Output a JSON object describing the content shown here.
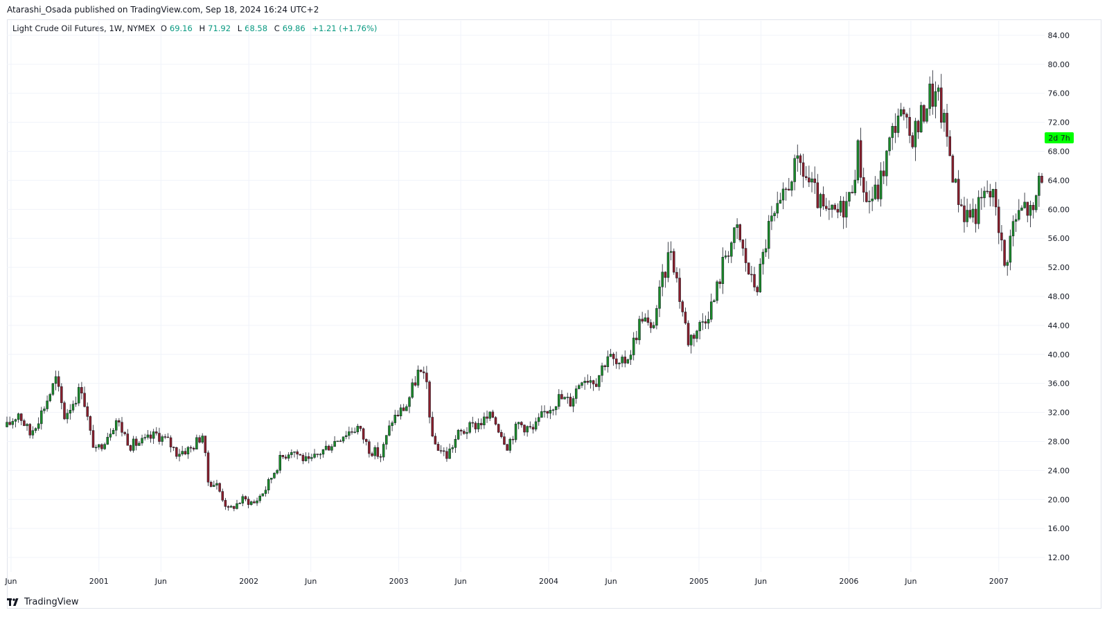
{
  "header": {
    "publisher_line": "Atarashi_Osada published on TradingView.com, Sep 18, 2024 16:24 UTC+2"
  },
  "legend": {
    "symbol": "Light Crude Oil Futures, 1W, NYMEX",
    "open_label": "O",
    "open": "69.16",
    "high_label": "H",
    "high": "71.92",
    "low_label": "L",
    "low": "68.58",
    "close_label": "C",
    "close": "69.86",
    "change": "+1.21 (+1.76%)"
  },
  "countdown_label": "2d 7h",
  "footer": {
    "brand": "TradingView"
  },
  "colors": {
    "up": "#1b8a2a",
    "down": "#8a1f2c",
    "grid": "#f0f3fa",
    "countdown_bg": "#00ff00",
    "axis_text": "#131722"
  },
  "chart_data": {
    "type": "candlestick",
    "ylim": [
      10,
      86
    ],
    "y_ticks": [
      "12.00",
      "16.00",
      "20.00",
      "24.00",
      "28.00",
      "32.00",
      "36.00",
      "40.00",
      "44.00",
      "48.00",
      "52.00",
      "56.00",
      "60.00",
      "64.00",
      "68.00",
      "72.00",
      "76.00",
      "80.00",
      "84.00"
    ],
    "x_start": "2000-05-22",
    "x_end": "2007-04-16",
    "x_ticks": [
      {
        "label": "Jun",
        "date": "2000-06-01"
      },
      {
        "label": "2001",
        "date": "2001-01-01"
      },
      {
        "label": "Jun",
        "date": "2001-06-01"
      },
      {
        "label": "2002",
        "date": "2002-01-01"
      },
      {
        "label": "Jun",
        "date": "2002-06-01"
      },
      {
        "label": "2003",
        "date": "2003-01-01"
      },
      {
        "label": "Jun",
        "date": "2003-06-01"
      },
      {
        "label": "2004",
        "date": "2004-01-01"
      },
      {
        "label": "Jun",
        "date": "2004-06-01"
      },
      {
        "label": "2005",
        "date": "2005-01-01"
      },
      {
        "label": "Jun",
        "date": "2005-06-01"
      },
      {
        "label": "2006",
        "date": "2006-01-01"
      },
      {
        "label": "Jun",
        "date": "2006-06-01"
      },
      {
        "label": "2007",
        "date": "2007-01-01"
      }
    ],
    "countdown_price": 69.86,
    "anchors": [
      [
        "2000-05-22",
        30.0
      ],
      [
        "2000-06-19",
        32.0
      ],
      [
        "2000-07-17",
        29.0
      ],
      [
        "2000-08-14",
        32.0
      ],
      [
        "2000-09-18",
        36.5
      ],
      [
        "2000-10-09",
        31.5
      ],
      [
        "2000-11-20",
        35.5
      ],
      [
        "2000-12-11",
        29.0
      ],
      [
        "2000-12-25",
        26.5
      ],
      [
        "2001-01-22",
        29.0
      ],
      [
        "2001-02-12",
        31.0
      ],
      [
        "2001-03-19",
        27.5
      ],
      [
        "2001-04-23",
        28.0
      ],
      [
        "2001-05-21",
        29.0
      ],
      [
        "2001-06-18",
        28.0
      ],
      [
        "2001-07-09",
        26.5
      ],
      [
        "2001-08-13",
        27.0
      ],
      [
        "2001-09-10",
        29.0
      ],
      [
        "2001-09-24",
        22.5
      ],
      [
        "2001-10-15",
        22.0
      ],
      [
        "2001-11-12",
        18.5
      ],
      [
        "2001-12-17",
        20.0
      ],
      [
        "2002-01-14",
        19.5
      ],
      [
        "2002-02-11",
        21.5
      ],
      [
        "2002-03-18",
        25.5
      ],
      [
        "2002-04-15",
        27.0
      ],
      [
        "2002-05-27",
        25.0
      ],
      [
        "2002-06-24",
        26.5
      ],
      [
        "2002-08-19",
        29.0
      ],
      [
        "2002-09-23",
        30.0
      ],
      [
        "2002-10-21",
        27.0
      ],
      [
        "2002-11-18",
        26.0
      ],
      [
        "2002-12-16",
        31.0
      ],
      [
        "2003-01-20",
        33.0
      ],
      [
        "2003-02-17",
        37.5
      ],
      [
        "2003-03-10",
        36.0
      ],
      [
        "2003-03-24",
        28.0
      ],
      [
        "2003-04-28",
        26.0
      ],
      [
        "2003-05-26",
        29.0
      ],
      [
        "2003-07-14",
        30.5
      ],
      [
        "2003-08-18",
        31.5
      ],
      [
        "2003-09-22",
        27.5
      ],
      [
        "2003-10-20",
        30.5
      ],
      [
        "2003-11-24",
        29.5
      ],
      [
        "2003-12-22",
        32.0
      ],
      [
        "2004-01-26",
        34.0
      ],
      [
        "2004-02-23",
        33.5
      ],
      [
        "2004-03-22",
        37.0
      ],
      [
        "2004-04-26",
        36.5
      ],
      [
        "2004-05-24",
        40.0
      ],
      [
        "2004-06-21",
        38.0
      ],
      [
        "2004-07-19",
        40.5
      ],
      [
        "2004-08-16",
        45.5
      ],
      [
        "2004-09-06",
        43.0
      ],
      [
        "2004-10-04",
        50.0
      ],
      [
        "2004-10-25",
        55.0
      ],
      [
        "2004-11-15",
        48.0
      ],
      [
        "2004-12-06",
        42.0
      ],
      [
        "2005-01-03",
        44.0
      ],
      [
        "2005-02-07",
        47.5
      ],
      [
        "2005-03-07",
        54.0
      ],
      [
        "2005-04-04",
        57.0
      ],
      [
        "2005-05-09",
        50.0
      ],
      [
        "2005-05-23",
        49.5
      ],
      [
        "2005-06-20",
        57.5
      ],
      [
        "2005-07-18",
        60.0
      ],
      [
        "2005-08-15",
        65.0
      ],
      [
        "2005-09-05",
        66.0
      ],
      [
        "2005-10-10",
        62.0
      ],
      [
        "2005-11-07",
        59.0
      ],
      [
        "2005-12-05",
        59.5
      ],
      [
        "2006-01-02",
        61.5
      ],
      [
        "2006-01-23",
        68.0
      ],
      [
        "2006-02-13",
        61.0
      ],
      [
        "2006-03-13",
        62.5
      ],
      [
        "2006-04-10",
        69.0
      ],
      [
        "2006-05-01",
        73.5
      ],
      [
        "2006-05-29",
        70.0
      ],
      [
        "2006-06-19",
        71.5
      ],
      [
        "2006-07-17",
        76.0
      ],
      [
        "2006-08-07",
        75.0
      ],
      [
        "2006-08-28",
        70.0
      ],
      [
        "2006-09-18",
        63.0
      ],
      [
        "2006-10-09",
        59.5
      ],
      [
        "2006-11-06",
        59.5
      ],
      [
        "2006-12-04",
        62.5
      ],
      [
        "2006-12-25",
        61.0
      ],
      [
        "2007-01-15",
        52.0
      ],
      [
        "2007-02-05",
        58.0
      ],
      [
        "2007-03-05",
        60.5
      ],
      [
        "2007-03-26",
        59.0
      ],
      [
        "2007-04-09",
        64.5
      ],
      [
        "2007-04-16",
        65.0
      ]
    ]
  }
}
